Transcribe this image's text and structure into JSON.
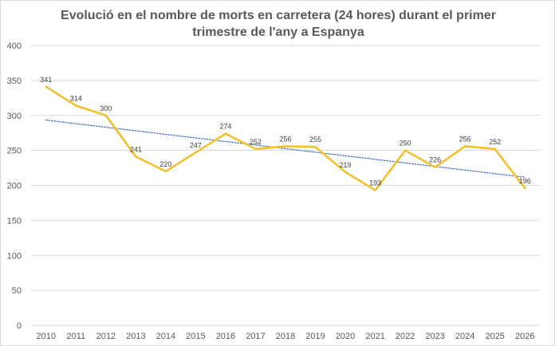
{
  "chart_data": {
    "type": "line",
    "title": "Evolució en el nombre de morts en carretera (24 hores) durant el primer trimestre de l'any a Espanya",
    "categories": [
      "2010",
      "2011",
      "2012",
      "2013",
      "2014",
      "2015",
      "2016",
      "2017",
      "2018",
      "2019",
      "2020",
      "2021",
      "2022",
      "2023",
      "2024",
      "2025",
      "2026"
    ],
    "series": [
      {
        "values": [
          341,
          314,
          300,
          241,
          220,
          247,
          274,
          252,
          256,
          255,
          219,
          193,
          250,
          226,
          256,
          252,
          196
        ]
      }
    ],
    "data_labels": [
      "341",
      "314",
      "300",
      "241",
      "220",
      "247",
      "274",
      "252",
      "256",
      "255",
      "219",
      "193",
      "250",
      "226",
      "256",
      "252",
      "196"
    ],
    "trendline": {
      "type": "linear",
      "style": "dotted"
    },
    "ylim": [
      0,
      400
    ],
    "yticks": [
      "0",
      "50",
      "100",
      "150",
      "200",
      "250",
      "300",
      "350",
      "400"
    ],
    "grid": true,
    "legend": "none",
    "colors": {
      "series": "#f2c12e",
      "trendline": "#4472c4",
      "grid": "#d9d9d9",
      "text": "#595959"
    }
  }
}
